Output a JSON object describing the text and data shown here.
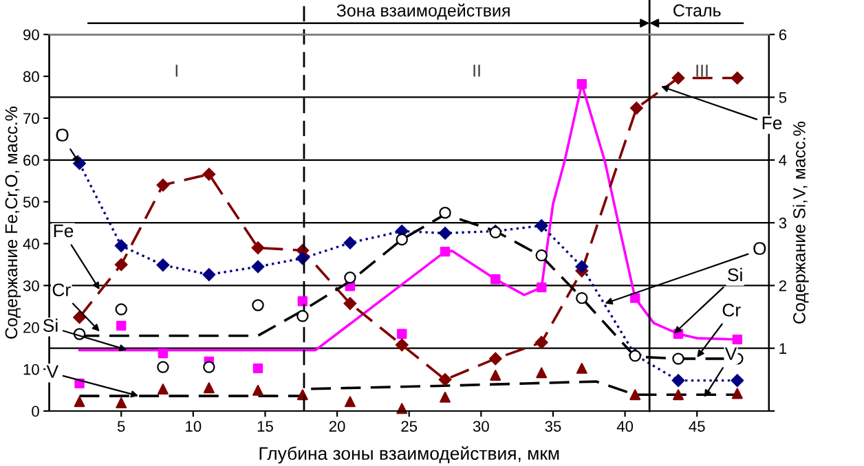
{
  "chart_data": {
    "type": "line",
    "xlabel": "Глубина зоны взаимодействия, мкм",
    "ylabel": "Содержание Fe,Cr,O, масс.%",
    "y2label": "Содержание Si,V, масс.%",
    "xlim": [
      0,
      50
    ],
    "xticks": [
      5,
      10,
      15,
      20,
      25,
      30,
      35,
      40,
      45
    ],
    "ylim": [
      0,
      90
    ],
    "yticks": [
      0,
      10,
      20,
      30,
      40,
      50,
      60,
      70,
      80,
      90
    ],
    "y2lim": [
      0,
      6
    ],
    "y2ticks": [
      {
        "value": 0,
        "label": null
      },
      1,
      2,
      3,
      4,
      5,
      6
    ],
    "grid": "y2",
    "legend": false,
    "series": [
      {
        "color": "#800000",
        "marker": "diamond",
        "line_style": "dashed",
        "x": [
          2.1,
          5,
          7.9,
          11.1,
          14.5,
          17.6,
          20.9,
          24.5,
          27.5,
          31,
          34.2,
          37,
          40.8,
          43.7,
          47.8
        ],
        "values": [
          22.4,
          35,
          54,
          56.6,
          39,
          38.4,
          25.7,
          15.8,
          7.5,
          12.5,
          16.4,
          33.5,
          72.4,
          79.6,
          79.6
        ]
      },
      {
        "color": "#000080",
        "marker": "diamond",
        "line_style": "dotted",
        "x": [
          2.1,
          5,
          7.9,
          11.1,
          14.5,
          17.6,
          20.9,
          24.5,
          27.5,
          31,
          34.2,
          37,
          40.7,
          43.7,
          47.8
        ],
        "values": [
          59.2,
          39.5,
          34.9,
          32.6,
          34.5,
          36.5,
          40.2,
          43,
          42.5,
          43,
          44.3,
          34.5,
          13.4,
          7.3,
          7.3
        ]
      },
      {
        "type": "scatter",
        "color": "#000000",
        "marker": "circle",
        "x": [
          2.1,
          5,
          7.9,
          11.1,
          14.5,
          17.6,
          20.9,
          24.5,
          27.5,
          31,
          34.2,
          37,
          40.7,
          43.7,
          47.8
        ],
        "values": [
          18.4,
          24.3,
          10.5,
          10.5,
          25.3,
          22.7,
          31.9,
          41,
          47.4,
          42.7,
          37.2,
          27,
          13.2,
          12.5,
          12.5
        ]
      },
      {
        "color": "#000000",
        "marker": "none",
        "line_style": "dashed",
        "x": [
          2.1,
          14.5,
          17.6,
          20.9,
          24.5,
          27.5,
          31,
          34.2,
          37,
          40.7,
          43.7,
          47.8
        ],
        "values": [
          18,
          18,
          24,
          31,
          41,
          47,
          43,
          37,
          27,
          13,
          12.5,
          12.5
        ]
      },
      {
        "type": "scatter",
        "axis": "y2",
        "color": "#ff00ff",
        "marker": "square",
        "x": [
          2.1,
          5,
          7.9,
          11.1,
          14.5,
          17.6,
          20.9,
          24.5,
          27.5,
          31,
          34.2,
          37,
          40.7,
          43.7,
          47.8
        ],
        "values": [
          0.44,
          1.36,
          0.92,
          0.79,
          0.68,
          1.75,
          1.99,
          1.23,
          2.54,
          2.1,
          1.97,
          5.21,
          1.8,
          1.23,
          1.14
        ]
      },
      {
        "axis": "y2",
        "color": "#ff00ff",
        "marker": "none",
        "line_style": "solid",
        "x": [
          2.1,
          18.5,
          27.5,
          28,
          31,
          33,
          34.2,
          35,
          35.8,
          37,
          38.6,
          39.6,
          40.7,
          42,
          43.7,
          45,
          47.8
        ],
        "values": [
          0.97,
          0.97,
          2.54,
          2.55,
          2.1,
          1.85,
          1.97,
          3.3,
          3.98,
          5.21,
          3.98,
          2.93,
          1.8,
          1.4,
          1.23,
          1.16,
          1.14
        ]
      },
      {
        "type": "scatter",
        "axis": "y2",
        "color": "#800000",
        "marker": "triangle",
        "x": [
          2.1,
          5,
          7.9,
          11.1,
          14.5,
          17.6,
          20.9,
          24.5,
          27.5,
          31,
          34.2,
          37,
          40.7,
          43.7,
          47.8
        ],
        "values": [
          0.15,
          0.13,
          0.35,
          0.37,
          0.33,
          0.26,
          0.15,
          0.04,
          0.22,
          0.57,
          0.61,
          0.68,
          0.26,
          0.26,
          0.28
        ]
      },
      {
        "axis": "y2",
        "color": "#000000",
        "marker": "none",
        "line_style": "dashed",
        "x": [
          2.1,
          17.6,
          17.6,
          27,
          38,
          40.7,
          47.8
        ],
        "values": [
          0.24,
          0.24,
          0.35,
          0.4,
          0.47,
          0.26,
          0.26
        ]
      }
    ],
    "ref_lines": [
      {
        "axis": "x",
        "value": 17.7,
        "line_style": "dashed",
        "color": "#000000"
      },
      {
        "axis": "x",
        "value": 41.7,
        "line_style": "solid",
        "color": "#000000"
      }
    ],
    "annotations": [
      "I",
      "II",
      "III",
      "Зона взаимодействия",
      "Сталь",
      {
        "text": "O",
        "x": 2.1,
        "y": 59.2
      },
      {
        "text": "Fe",
        "x": 3.5,
        "y": 29
      },
      {
        "text": "Cr",
        "x": 3.5,
        "y": 19
      },
      {
        "text": "Si",
        "x": 5.4,
        "y": 14.6
      },
      {
        "text": "V",
        "x": 6.2,
        "y": 3.6
      },
      {
        "text": "Fe",
        "x": 42.5,
        "y": 77.6
      },
      {
        "text": "O",
        "x": 38.6,
        "y": 25.7
      },
      {
        "text": "Si",
        "x": 43.4,
        "y": 18.5
      },
      {
        "text": "Cr",
        "x": 45,
        "y": 12.8
      },
      {
        "text": "V",
        "x": 45.5,
        "y": 3.3
      }
    ]
  }
}
